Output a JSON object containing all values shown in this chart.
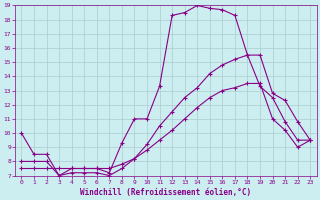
{
  "xlabel": "Windchill (Refroidissement éolien,°C)",
  "background_color": "#cceef0",
  "line_color": "#880088",
  "grid_color": "#aacccc",
  "xlim": [
    -0.5,
    23.5
  ],
  "ylim": [
    7,
    19
  ],
  "xticks": [
    0,
    1,
    2,
    3,
    4,
    5,
    6,
    7,
    8,
    9,
    10,
    11,
    12,
    13,
    14,
    15,
    16,
    17,
    18,
    19,
    20,
    21,
    22,
    23
  ],
  "yticks": [
    7,
    8,
    9,
    10,
    11,
    12,
    13,
    14,
    15,
    16,
    17,
    18,
    19
  ],
  "line1_x": [
    0,
    1,
    2,
    3,
    4,
    5,
    6,
    7,
    8,
    9,
    10,
    11,
    12,
    13,
    14,
    15,
    16,
    17,
    18,
    19,
    20,
    21,
    22,
    23
  ],
  "line1_y": [
    10,
    8.5,
    8.5,
    7.0,
    7.5,
    7.5,
    7.5,
    7.2,
    9.3,
    11.0,
    11.0,
    13.3,
    18.3,
    18.5,
    19.0,
    18.8,
    18.7,
    18.3,
    15.5,
    13.3,
    12.5,
    10.8,
    9.5,
    9.5
  ],
  "line2_x": [
    0,
    1,
    2,
    3,
    4,
    5,
    6,
    7,
    8,
    9,
    10,
    11,
    12,
    13,
    14,
    15,
    16,
    17,
    18,
    19,
    20,
    21,
    22,
    23
  ],
  "line2_y": [
    8.0,
    8.0,
    8.0,
    7.0,
    7.2,
    7.2,
    7.2,
    7.0,
    7.5,
    8.2,
    9.2,
    10.5,
    11.5,
    12.5,
    13.2,
    14.2,
    14.8,
    15.2,
    15.5,
    15.5,
    12.8,
    12.3,
    10.8,
    9.5
  ],
  "line3_x": [
    0,
    1,
    2,
    3,
    4,
    5,
    6,
    7,
    8,
    9,
    10,
    11,
    12,
    13,
    14,
    15,
    16,
    17,
    18,
    19,
    20,
    21,
    22,
    23
  ],
  "line3_y": [
    7.5,
    7.5,
    7.5,
    7.5,
    7.5,
    7.5,
    7.5,
    7.5,
    7.8,
    8.2,
    8.8,
    9.5,
    10.2,
    11.0,
    11.8,
    12.5,
    13.0,
    13.2,
    13.5,
    13.5,
    11.0,
    10.2,
    9.0,
    9.5
  ],
  "marker": "+",
  "markersize": 3,
  "linewidth": 0.8,
  "tick_fontsize": 4.5,
  "xlabel_fontsize": 5.5
}
